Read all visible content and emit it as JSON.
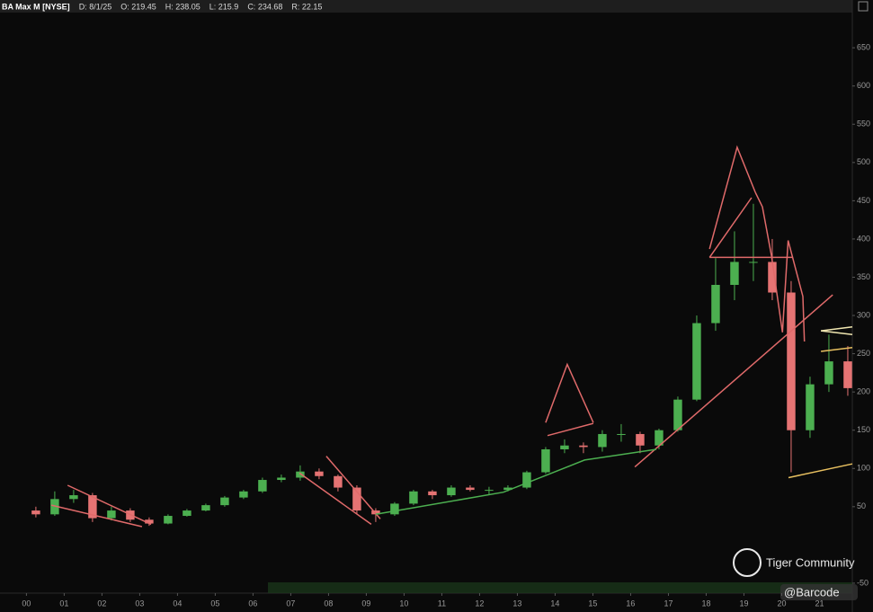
{
  "chart_data": {
    "type": "candlestick",
    "title": "BA Max M [NYSE]",
    "info": [
      "D: 8/1/25",
      "O: 219.45",
      "H: 238.05",
      "L: 215.9",
      "C: 234.68",
      "R: 22.15"
    ],
    "watermark": {
      "brand": "Tiger Community",
      "handle": "@Barcode"
    },
    "x": [
      0.25,
      0.75,
      1.25,
      1.75,
      2.25,
      2.75,
      3.25,
      3.75,
      4.25,
      4.75,
      5.25,
      5.75,
      6.25,
      6.75,
      7.25,
      7.75,
      8.25,
      8.75,
      9.25,
      9.75,
      10.25,
      10.75,
      11.25,
      11.75,
      12.25,
      12.75,
      13.25,
      13.75,
      14.25,
      14.75,
      15.25,
      15.75,
      16.25,
      16.75,
      17.25,
      17.75,
      18.25,
      18.75,
      19.25,
      19.75,
      20.25,
      20.75,
      21.25,
      21.75
    ],
    "open": [
      45,
      40,
      60,
      65,
      35,
      45,
      33,
      28,
      38,
      45,
      52,
      62,
      70,
      85,
      88,
      96,
      90,
      75,
      45,
      40,
      54,
      70,
      65,
      75,
      72,
      72,
      75,
      95,
      125,
      130,
      128,
      145,
      145,
      130,
      150,
      190,
      290,
      340,
      370,
      370,
      330,
      150,
      210,
      240
    ],
    "high": [
      50,
      70,
      72,
      68,
      50,
      48,
      36,
      40,
      47,
      54,
      64,
      72,
      88,
      92,
      104,
      100,
      92,
      78,
      48,
      56,
      72,
      72,
      78,
      78,
      76,
      78,
      97,
      128,
      138,
      134,
      150,
      158,
      148,
      152,
      194,
      300,
      375,
      410,
      446,
      400,
      345,
      220,
      275,
      260
    ],
    "low": [
      36,
      38,
      55,
      30,
      32,
      30,
      25,
      27,
      37,
      44,
      50,
      60,
      68,
      82,
      84,
      86,
      70,
      40,
      30,
      38,
      52,
      60,
      63,
      70,
      66,
      70,
      73,
      93,
      120,
      120,
      122,
      135,
      120,
      125,
      148,
      188,
      280,
      320,
      345,
      320,
      95,
      140,
      200,
      195
    ],
    "close": [
      40,
      60,
      65,
      35,
      45,
      33,
      28,
      38,
      45,
      52,
      62,
      70,
      85,
      88,
      96,
      90,
      75,
      45,
      40,
      54,
      70,
      65,
      75,
      72,
      72,
      75,
      95,
      125,
      130,
      128,
      145,
      145,
      130,
      150,
      190,
      290,
      340,
      370,
      370,
      330,
      150,
      210,
      240,
      205
    ],
    "up_color": "#4caf50",
    "down_color": "#e57373",
    "xlim": [
      -0.7,
      21.87
    ],
    "ylim": [
      -63,
      696
    ],
    "xticks": [
      {
        "value": 0,
        "label": "00"
      },
      {
        "value": 1,
        "label": "01"
      },
      {
        "value": 2,
        "label": "02"
      },
      {
        "value": 3,
        "label": "03"
      },
      {
        "value": 4,
        "label": "04"
      },
      {
        "value": 5,
        "label": "05"
      },
      {
        "value": 6,
        "label": "06"
      },
      {
        "value": 7,
        "label": "07"
      },
      {
        "value": 8,
        "label": "08"
      },
      {
        "value": 9,
        "label": "09"
      },
      10,
      11,
      12,
      13,
      14,
      15,
      16,
      17,
      18,
      19,
      20,
      21
    ],
    "yticks": [
      -50,
      50,
      100,
      150,
      200,
      250,
      300,
      350,
      400,
      450,
      500,
      550,
      600,
      650
    ],
    "drawings": [
      {
        "color": "#e06a6a",
        "points": [
          [
            1.09,
            78
          ],
          [
            3.3,
            27
          ]
        ]
      },
      {
        "color": "#e06a6a",
        "points": [
          [
            0.66,
            52
          ],
          [
            3.06,
            24
          ]
        ]
      },
      {
        "color": "#e06a6a",
        "points": [
          [
            7.23,
            94
          ],
          [
            9.13,
            27
          ]
        ]
      },
      {
        "color": "#e06a6a",
        "points": [
          [
            7.94,
            116
          ],
          [
            9.37,
            34
          ]
        ]
      },
      {
        "color": "#e06a6a",
        "points": [
          [
            13.75,
            160
          ],
          [
            14.32,
            236
          ],
          [
            15.01,
            160
          ]
        ]
      },
      {
        "color": "#e06a6a",
        "points": [
          [
            13.8,
            143
          ],
          [
            15.01,
            159
          ]
        ]
      },
      {
        "color": "#e06a6a",
        "points": [
          [
            16.11,
            102
          ],
          [
            21.35,
            327
          ]
        ]
      },
      {
        "color": "#e06a6a",
        "points": [
          [
            18.09,
            387
          ],
          [
            18.82,
            520
          ],
          [
            19.3,
            461
          ]
        ]
      },
      {
        "color": "#e06a6a",
        "points": [
          [
            18.09,
            376
          ],
          [
            19.2,
            454
          ]
        ]
      },
      {
        "color": "#e06a6a",
        "points": [
          [
            18.09,
            376
          ],
          [
            20.3,
            376
          ]
        ]
      },
      {
        "color": "#e06a6a",
        "points": [
          [
            19.3,
            461
          ],
          [
            19.49,
            442
          ],
          [
            19.73,
            378
          ],
          [
            20.02,
            278
          ],
          [
            20.17,
            398
          ],
          [
            20.56,
            325
          ],
          [
            20.6,
            266
          ]
        ]
      },
      {
        "color": "#4caf50",
        "points": [
          [
            9.25,
            40
          ],
          [
            12.63,
            69
          ],
          [
            14.78,
            111
          ],
          [
            16.68,
            125
          ]
        ]
      },
      {
        "color": "#e8c060",
        "points": [
          [
            20.18,
            88
          ],
          [
            21.87,
            106
          ]
        ]
      },
      {
        "color": "#e8c060",
        "points": [
          [
            21.04,
            253
          ],
          [
            21.87,
            258
          ]
        ]
      },
      {
        "color": "#f0e6b0",
        "points": [
          [
            21.04,
            280
          ],
          [
            21.87,
            275
          ]
        ]
      },
      {
        "color": "#f0e6b0",
        "points": [
          [
            21.04,
            280
          ],
          [
            21.87,
            285
          ]
        ]
      }
    ]
  }
}
